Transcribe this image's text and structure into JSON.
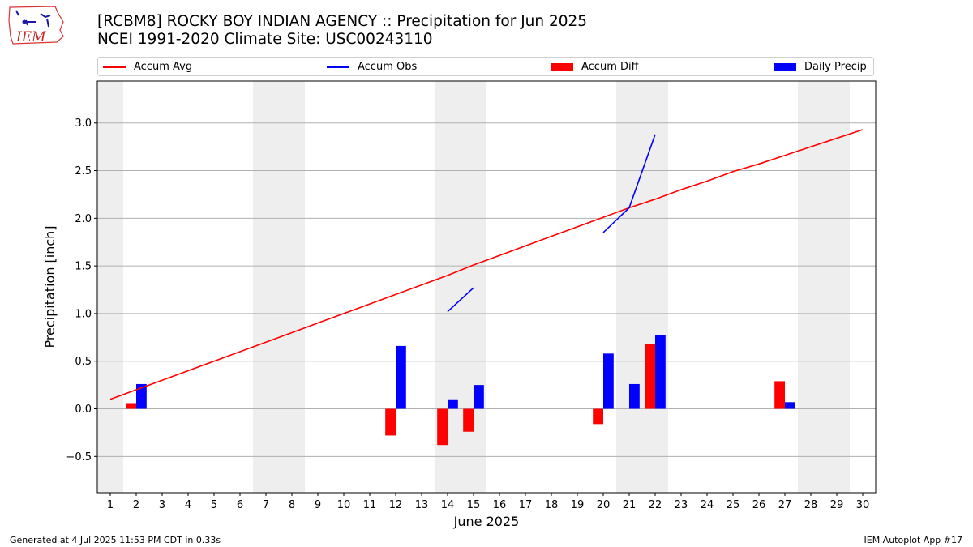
{
  "title_line1": "[RCBM8] ROCKY BOY INDIAN AGENCY :: Precipitation for Jun 2025",
  "title_line2": "NCEI 1991-2020 Climate Site: USC00243110",
  "logo_text": "IEM",
  "footer_left": "Generated at 4 Jul 2025 11:53 PM CDT in 0.33s",
  "footer_right": "IEM Autoplot App #17",
  "colors": {
    "avg": "#ff0000",
    "obs": "#0000ff",
    "diff": "#ff0000",
    "daily": "#0000ff",
    "weekend": "#eeeeee",
    "grid": "#b0b0b0"
  },
  "legend": [
    {
      "label": "Accum Avg",
      "kind": "line",
      "color": "#ff0000"
    },
    {
      "label": "Accum Obs",
      "kind": "line",
      "color": "#0000ff"
    },
    {
      "label": "Accum Diff",
      "kind": "bar",
      "color": "#ff0000"
    },
    {
      "label": "Daily Precip",
      "kind": "bar",
      "color": "#0000ff"
    }
  ],
  "chart_data": {
    "type": "bar",
    "xlabel": "June 2025",
    "ylabel": "Precipitation [inch]",
    "xlim": [
      0.5,
      30.5
    ],
    "ylim": [
      -0.88,
      3.44
    ],
    "yticks": [
      -0.5,
      0.0,
      0.5,
      1.0,
      1.5,
      2.0,
      2.5,
      3.0
    ],
    "ytick_labels": [
      "−0.5",
      "0.0",
      "0.5",
      "1.0",
      "1.5",
      "2.0",
      "2.5",
      "3.0"
    ],
    "x": [
      1,
      2,
      3,
      4,
      5,
      6,
      7,
      8,
      9,
      10,
      11,
      12,
      13,
      14,
      15,
      16,
      17,
      18,
      19,
      20,
      21,
      22,
      23,
      24,
      25,
      26,
      27,
      28,
      29,
      30
    ],
    "weekend_days": [
      1,
      7,
      8,
      14,
      15,
      21,
      22,
      28,
      29
    ],
    "grid": "horizontal",
    "series": [
      {
        "name": "Accum Avg",
        "type": "line",
        "values": [
          0.1,
          0.2,
          0.3,
          0.4,
          0.5,
          0.6,
          0.7,
          0.8,
          0.9,
          1.0,
          1.1,
          1.2,
          1.3,
          1.4,
          1.51,
          1.61,
          1.71,
          1.81,
          1.91,
          2.01,
          2.11,
          2.2,
          2.3,
          2.39,
          2.49,
          2.57,
          2.66,
          2.75,
          2.84,
          2.93
        ]
      },
      {
        "name": "Accum Obs",
        "type": "line",
        "values": [
          null,
          null,
          null,
          null,
          null,
          null,
          null,
          null,
          null,
          null,
          null,
          null,
          null,
          1.02,
          1.27,
          null,
          null,
          null,
          null,
          1.85,
          2.11,
          2.88,
          null,
          null,
          null,
          null,
          null,
          null,
          null,
          null
        ]
      },
      {
        "name": "Accum Diff",
        "type": "bar",
        "values": [
          null,
          0.06,
          null,
          null,
          null,
          null,
          null,
          null,
          null,
          null,
          null,
          -0.28,
          null,
          -0.38,
          -0.24,
          null,
          null,
          null,
          null,
          -0.16,
          null,
          0.68,
          null,
          null,
          null,
          null,
          0.29,
          null,
          null,
          null
        ]
      },
      {
        "name": "Daily Precip",
        "type": "bar",
        "values": [
          null,
          0.26,
          null,
          null,
          null,
          null,
          null,
          null,
          null,
          null,
          null,
          0.66,
          null,
          0.1,
          0.25,
          null,
          null,
          null,
          null,
          0.58,
          0.26,
          0.77,
          null,
          null,
          null,
          null,
          0.07,
          null,
          null,
          null
        ]
      }
    ]
  }
}
